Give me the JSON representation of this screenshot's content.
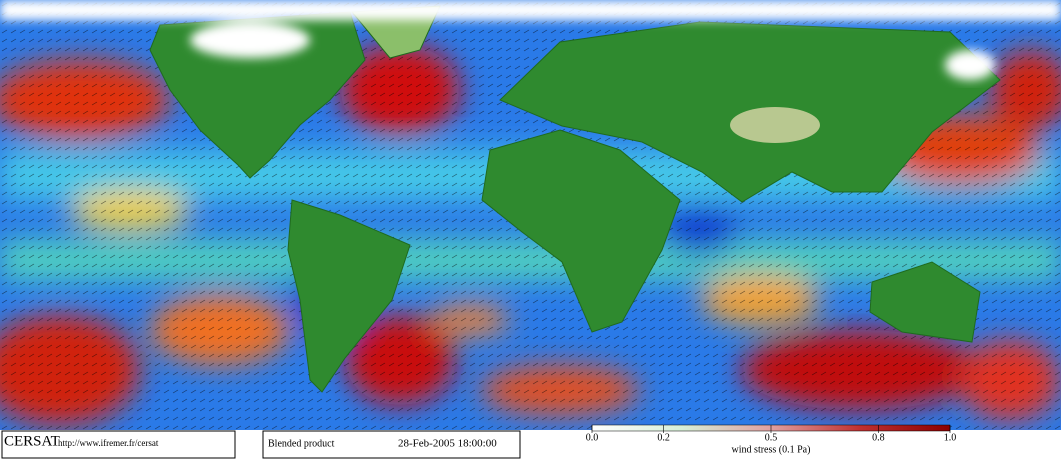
{
  "footer": {
    "logo": "CERSAT",
    "url": "http://www.ifremer.fr/cersat",
    "product": "Blended product",
    "datetime": "28-Feb-2005 18:00:00"
  },
  "colorbar": {
    "label": "wind stress (0.1 Pa)",
    "ticks": [
      {
        "value": 0,
        "label": "0.0"
      },
      0.2,
      0.5,
      0.8,
      {
        "value": 1,
        "label": "1.0"
      }
    ],
    "colors": [
      "#ffffff",
      "#d8f0d8",
      "#e0a0a0",
      "#c03030",
      "#8b0000"
    ]
  }
}
